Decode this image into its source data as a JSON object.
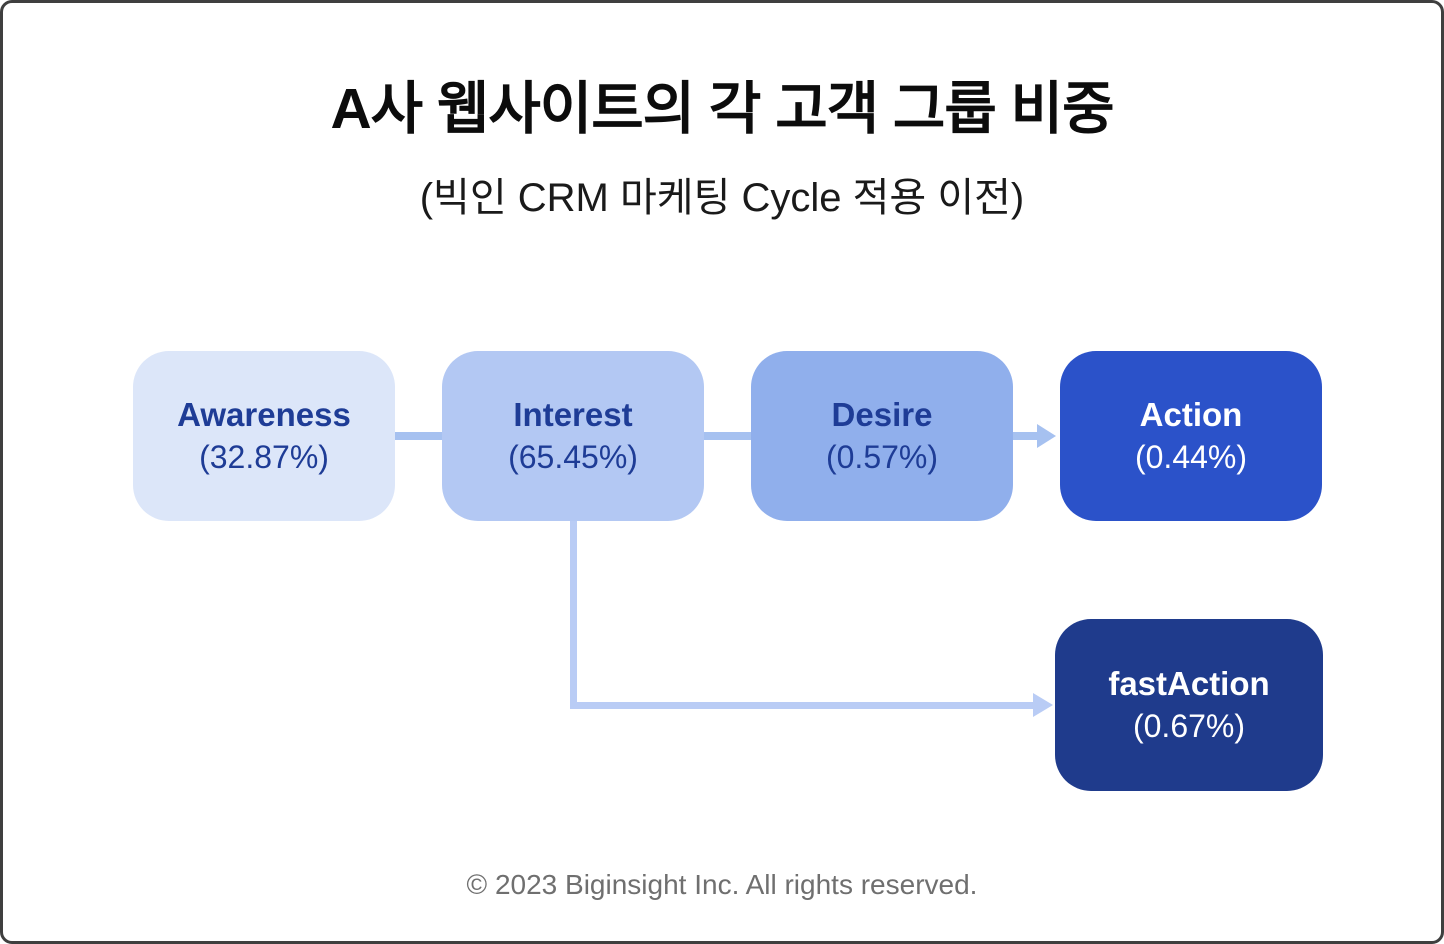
{
  "header": {
    "title": "A사 웹사이트의 각 고객 그룹 비중",
    "subtitle": "(빅인 CRM 마케팅 Cycle 적용 이전)"
  },
  "diagram": {
    "nodes": [
      {
        "id": "awareness",
        "label": "Awareness",
        "value": "(32.87%)",
        "percent": 32.87
      },
      {
        "id": "interest",
        "label": "Interest",
        "value": "(65.45%)",
        "percent": 65.45
      },
      {
        "id": "desire",
        "label": "Desire",
        "value": "(0.57%)",
        "percent": 0.57
      },
      {
        "id": "action",
        "label": "Action",
        "value": "(0.44%)",
        "percent": 0.44
      },
      {
        "id": "fastaction",
        "label": "fastAction",
        "value": "(0.67%)",
        "percent": 0.67
      }
    ],
    "connections": [
      {
        "from": "awareness",
        "to": "interest",
        "arrowhead": false
      },
      {
        "from": "interest",
        "to": "desire",
        "arrowhead": false
      },
      {
        "from": "desire",
        "to": "action",
        "arrowhead": true
      },
      {
        "from": "interest",
        "to": "fastaction",
        "arrowhead": true
      }
    ]
  },
  "footer": {
    "copyright": "© 2023 Biginsight Inc. All rights reserved."
  },
  "colors": {
    "page-bg": "#ffffff",
    "frame-border": "#3f3f3f",
    "title-color": "#0c0c0c",
    "subtitle-color": "#1a1a1a",
    "awareness-bg": "#dce6f9",
    "interest-bg": "#b3c8f3",
    "desire-bg": "#90afec",
    "action-bg": "#2b52c9",
    "fastaction-bg": "#1f3b8c",
    "node-text-dark": "#1e3c96",
    "node-text-light": "#ffffff",
    "connector-row": "#a6c1f0",
    "connector-branch": "#b9ccf5",
    "footer-color": "#6f6f6f"
  }
}
